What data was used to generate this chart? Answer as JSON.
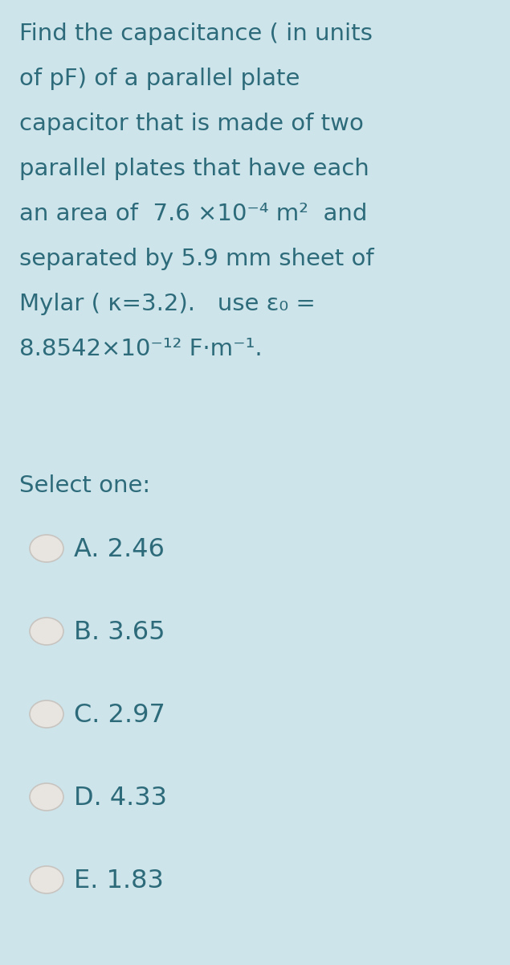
{
  "background_color": "#cde4eb",
  "text_color": "#2d6b7a",
  "question_lines": [
    "Find the capacitance ( in units",
    "of pF) of a parallel plate",
    "capacitor that is made of two",
    "parallel plates that have each",
    "an area of  7.6 ×10⁻⁴ m²  and",
    "separated by 5.9 mm sheet of",
    "Mylar ( κ=3.2).   use ε₀ =",
    "8.8542×10⁻¹² F·m⁻¹."
  ],
  "select_one_label": "Select one:",
  "options": [
    "A. 2.46",
    "B. 3.65",
    "C. 2.97",
    "D. 4.33",
    "E. 1.83"
  ],
  "question_fontsize": 21,
  "options_fontsize": 23,
  "select_fontsize": 21,
  "radio_fill": "#e8e4e0",
  "radio_edge": "#c8c4c0",
  "fig_width": 6.35,
  "fig_height": 12.0,
  "dpi": 100
}
